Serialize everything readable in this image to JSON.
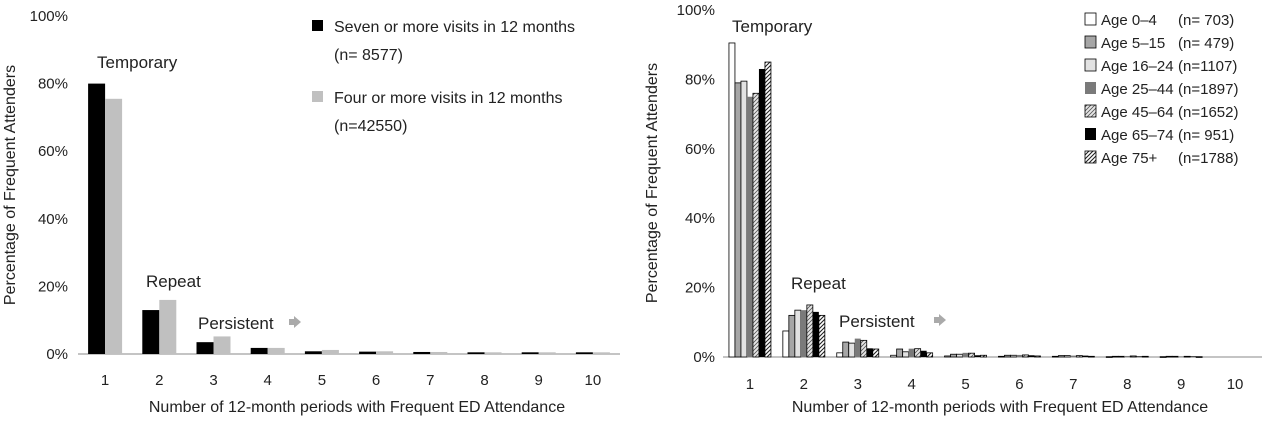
{
  "chart_data": [
    {
      "type": "bar",
      "categories": [
        "1",
        "2",
        "3",
        "4",
        "5",
        "6",
        "7",
        "8",
        "9",
        "10"
      ],
      "series": [
        {
          "name": "Seven or more visits in 12 months",
          "n_label": "(n=  8577)",
          "color": "#000000",
          "values": [
            80,
            13,
            3.5,
            1.8,
            0.8,
            0.7,
            0.6,
            0.5,
            0.5,
            0.5
          ]
        },
        {
          "name": "Four or more visits in 12 months",
          "n_label": "(n=42550)",
          "color": "#c0c0c0",
          "values": [
            75.5,
            16,
            5.2,
            1.8,
            1.2,
            0.8,
            0.6,
            0.5,
            0.5,
            0.5
          ]
        }
      ],
      "xlabel": "Number of 12-month periods with Frequent ED Attendance",
      "ylabel": "Percentage of Frequent Attenders",
      "ylim": [
        0,
        100
      ],
      "yticks": [
        "0%",
        "20%",
        "40%",
        "60%",
        "80%",
        "100%"
      ],
      "annotations": [
        "Temporary",
        "Repeat",
        "Persistent"
      ],
      "legend_position": "top-right"
    },
    {
      "type": "bar",
      "categories": [
        "1",
        "2",
        "3",
        "4",
        "5",
        "6",
        "7",
        "8",
        "9",
        "10"
      ],
      "series": [
        {
          "name": "Age 0–4",
          "n_label": "(n=   703)",
          "fill": "white",
          "values": [
            90.5,
            7.5,
            1.2,
            0.5,
            0.3,
            0.2,
            0.2,
            0.1,
            0.1,
            0
          ]
        },
        {
          "name": "Age 5–15",
          "n_label": "(n=   479)",
          "fill": "grey",
          "values": [
            79,
            12,
            4.3,
            2.3,
            0.8,
            0.5,
            0.4,
            0.2,
            0.2,
            0
          ]
        },
        {
          "name": "Age 16–24",
          "n_label": "(n=1107)",
          "fill": "lightgrey",
          "values": [
            79.5,
            13.5,
            4,
            1.5,
            0.8,
            0.5,
            0.4,
            0.2,
            0.2,
            0
          ]
        },
        {
          "name": "Age 25–44",
          "n_label": "(n=1897)",
          "fill": "darkgrey",
          "values": [
            75,
            13.5,
            5.3,
            2.4,
            1.2,
            0.6,
            0.4,
            0.3,
            0.2,
            0
          ]
        },
        {
          "name": "Age 45–64",
          "n_label": "(n=1652)",
          "fill": "hatch-light",
          "values": [
            76,
            15,
            4.8,
            2.4,
            1.1,
            0.6,
            0.4,
            0.3,
            0.2,
            0
          ]
        },
        {
          "name": "Age 65–74",
          "n_label": "(n=   951)",
          "fill": "black",
          "values": [
            83,
            13,
            2.5,
            1.8,
            0.5,
            0.5,
            0.4,
            0.2,
            0.2,
            0
          ]
        },
        {
          "name": "Age 75+",
          "n_label": "(n=1788)",
          "fill": "hatch-dark",
          "values": [
            85,
            12,
            2.3,
            1.2,
            0.5,
            0.3,
            0.2,
            0.2,
            0.1,
            0
          ]
        }
      ],
      "xlabel": "Number of 12-month periods with Frequent ED Attendance",
      "ylabel": "Percentage of Frequent Attenders",
      "ylim": [
        0,
        100
      ],
      "yticks": [
        "0%",
        "20%",
        "40%",
        "60%",
        "80%",
        "100%"
      ],
      "annotations": [
        "Temporary",
        "Repeat",
        "Persistent"
      ],
      "legend_position": "top-right"
    }
  ]
}
